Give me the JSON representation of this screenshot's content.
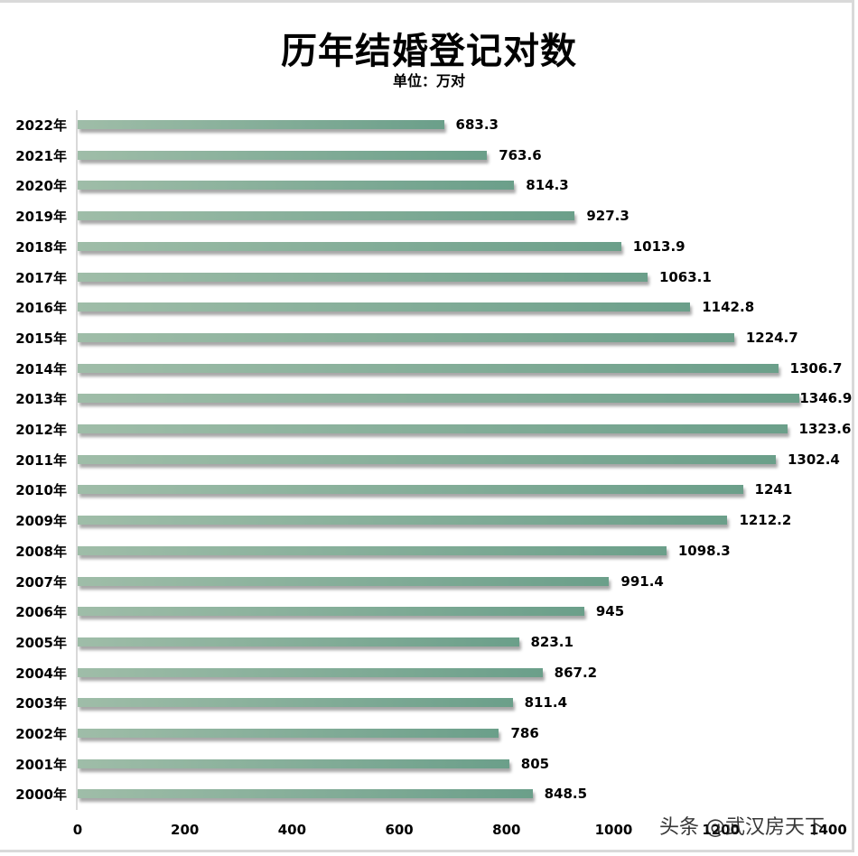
{
  "header": {
    "title": "历年结婚登记对数",
    "subtitle": "单位：万对"
  },
  "watermark": "头条 @武汉房天下",
  "colors": {
    "bar_start": "#9fbda8",
    "bar_end": "#6b9f8a",
    "axis": "#d9d9d9"
  },
  "chart_data": {
    "type": "bar",
    "orientation": "horizontal",
    "title": "历年结婚登记对数",
    "subtitle": "单位：万对",
    "xlabel": "",
    "ylabel": "",
    "xlim": [
      0,
      1400
    ],
    "xticks": [
      "0",
      "200",
      "400",
      "600",
      "800",
      "1000",
      "1200",
      "1400"
    ],
    "grid": false,
    "legend": null,
    "categories": [
      "2022年",
      "2021年",
      "2020年",
      "2019年",
      "2018年",
      "2017年",
      "2016年",
      "2015年",
      "2014年",
      "2013年",
      "2012年",
      "2011年",
      "2010年",
      "2009年",
      "2008年",
      "2007年",
      "2006年",
      "2005年",
      "2004年",
      "2003年",
      "2002年",
      "2001年",
      "2000年"
    ],
    "values": [
      683.3,
      763.6,
      814.3,
      927.3,
      1013.9,
      1063.1,
      1142.8,
      1224.7,
      1306.7,
      1346.9,
      1323.6,
      1302.4,
      1241,
      1212.2,
      1098.3,
      991.4,
      945,
      823.1,
      867.2,
      811.4,
      786,
      805,
      848.5
    ],
    "value_labels": [
      "683.3",
      "763.6",
      "814.3",
      "927.3",
      "1013.9",
      "1063.1",
      "1142.8",
      "1224.7",
      "1306.7",
      "1346.9",
      "1323.6",
      "1302.4",
      "1241",
      "1212.2",
      "1098.3",
      "991.4",
      "945",
      "823.1",
      "867.2",
      "811.4",
      "786",
      "805",
      "848.5"
    ]
  }
}
